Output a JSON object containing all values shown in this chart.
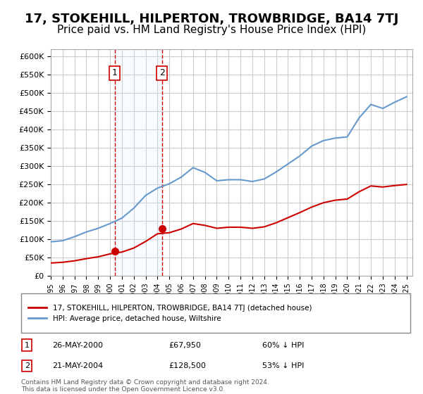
{
  "title": "17, STOKEHILL, HILPERTON, TROWBRIDGE, BA14 7TJ",
  "subtitle": "Price paid vs. HM Land Registry's House Price Index (HPI)",
  "title_fontsize": 13,
  "subtitle_fontsize": 11,
  "background_color": "#ffffff",
  "plot_bg_color": "#ffffff",
  "grid_color": "#cccccc",
  "ylim": [
    0,
    620000
  ],
  "yticks": [
    0,
    50000,
    100000,
    150000,
    200000,
    250000,
    300000,
    350000,
    400000,
    450000,
    500000,
    550000,
    600000
  ],
  "xlim_start": 1995.5,
  "xlim_end": 2025.5,
  "xticks": [
    1995,
    1996,
    1997,
    1998,
    1999,
    2000,
    2001,
    2002,
    2003,
    2004,
    2005,
    2006,
    2007,
    2008,
    2009,
    2010,
    2011,
    2012,
    2013,
    2014,
    2015,
    2016,
    2017,
    2018,
    2019,
    2020,
    2021,
    2022,
    2023,
    2024,
    2025
  ],
  "sale1_x": 2000.39,
  "sale1_y": 67950,
  "sale1_label": "1",
  "sale1_date": "26-MAY-2000",
  "sale1_price": "£67,950",
  "sale1_hpi": "60% ↓ HPI",
  "sale2_x": 2004.38,
  "sale2_y": 128500,
  "sale2_label": "2",
  "sale2_date": "21-MAY-2004",
  "sale2_price": "£128,500",
  "sale2_hpi": "53% ↓ HPI",
  "marker_color": "#cc0000",
  "marker_size": 7,
  "dashed_line_color": "#cc0000",
  "shade_color": "#ddeeff",
  "hpi_line_color": "#6699cc",
  "price_line_color": "#cc0000",
  "legend_label_price": "17, STOKEHILL, HILPERTON, TROWBRIDGE, BA14 7TJ (detached house)",
  "legend_label_hpi": "HPI: Average price, detached house, Wiltshire",
  "footnote": "Contains HM Land Registry data © Crown copyright and database right 2024.\nThis data is licensed under the Open Government Licence v3.0.",
  "hpi_data_x": [
    1995,
    1996,
    1997,
    1998,
    1999,
    2000,
    2001,
    2002,
    2003,
    2004,
    2005,
    2006,
    2007,
    2008,
    2009,
    2010,
    2011,
    2012,
    2013,
    2014,
    2015,
    2016,
    2017,
    2018,
    2019,
    2020,
    2021,
    2022,
    2023,
    2024,
    2025
  ],
  "hpi_data_y": [
    93000,
    96000,
    107000,
    120000,
    130000,
    143000,
    158000,
    185000,
    220000,
    240000,
    252000,
    270000,
    296000,
    283000,
    260000,
    263000,
    263000,
    258000,
    265000,
    284000,
    306000,
    328000,
    355000,
    370000,
    377000,
    380000,
    432000,
    469000,
    458000,
    475000,
    490000
  ],
  "price_data_x": [
    1995,
    1996,
    1997,
    1998,
    1999,
    2000,
    2001,
    2002,
    2003,
    2004,
    2005,
    2006,
    2007,
    2008,
    2009,
    2010,
    2011,
    2012,
    2013,
    2014,
    2015,
    2016,
    2017,
    2018,
    2019,
    2020,
    2021,
    2022,
    2023,
    2024,
    2025
  ],
  "price_data_y": [
    35000,
    37000,
    41000,
    47000,
    52000,
    60000,
    65000,
    76000,
    94000,
    115000,
    118000,
    128000,
    143000,
    138000,
    130000,
    133000,
    133000,
    130000,
    134000,
    145000,
    159000,
    173000,
    188000,
    200000,
    207000,
    210000,
    230000,
    246000,
    243000,
    247000,
    250000
  ],
  "sale1_scatter_x": [
    2000.39
  ],
  "sale1_scatter_y": [
    67950
  ],
  "sale2_scatter_x": [
    2004.38
  ],
  "sale2_scatter_y": [
    128500
  ]
}
